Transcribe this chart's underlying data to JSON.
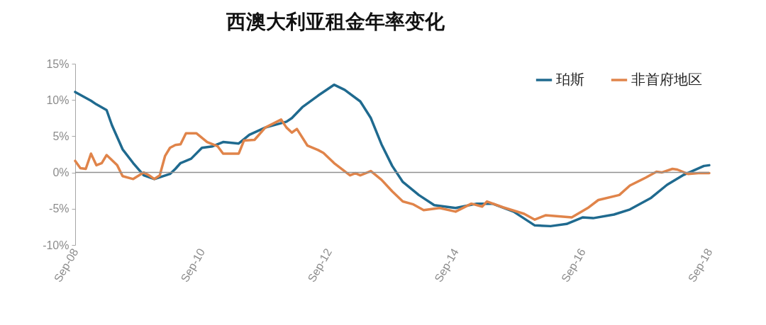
{
  "chart_data": {
    "type": "line",
    "title": "西澳大利亚租金年率变化",
    "xlim": [
      "2008-09",
      "2018-09"
    ],
    "xticks": [
      {
        "value": "2008-09",
        "label": "Sep-08"
      },
      {
        "value": "2010-09",
        "label": "Sep-10"
      },
      {
        "value": "2012-09",
        "label": "Sep-12"
      },
      {
        "value": "2014-09",
        "label": "Sep-14"
      },
      {
        "value": "2016-09",
        "label": "Sep-16"
      },
      {
        "value": "2018-09",
        "label": "Sep-18"
      }
    ],
    "ylim": [
      -10,
      15
    ],
    "yticks": [
      {
        "value": -10,
        "label": "-10%"
      },
      {
        "value": -5,
        "label": "-5%"
      },
      {
        "value": 0,
        "label": "0%"
      },
      {
        "value": 5,
        "label": "5%"
      },
      {
        "value": 10,
        "label": "10%"
      },
      {
        "value": 15,
        "label": "15%"
      }
    ],
    "grid": false,
    "legend": "top right",
    "line_style": "solid",
    "ref_lines": [
      {
        "axis": "y",
        "value": 0,
        "label": null,
        "color": "#909090"
      }
    ],
    "series": [
      {
        "name": "珀斯",
        "color": "#1f6a8f",
        "x": [
          "2008-09",
          "2008-12",
          "2009-01",
          "2009-03",
          "2009-04",
          "2009-06",
          "2009-08",
          "2009-10",
          "2009-12",
          "2010-03",
          "2010-04",
          "2010-05",
          "2010-07",
          "2010-09",
          "2010-11",
          "2011-01",
          "2011-04",
          "2011-06",
          "2011-09",
          "2012-01",
          "2012-02",
          "2012-04",
          "2012-07",
          "2012-10",
          "2012-12",
          "2013-03",
          "2013-05",
          "2013-07",
          "2013-09",
          "2013-11",
          "2014-01",
          "2014-02",
          "2014-05",
          "2014-09",
          "2015-01",
          "2015-04",
          "2015-08",
          "2015-12",
          "2016-03",
          "2016-06",
          "2016-09",
          "2016-11",
          "2017-03",
          "2017-06",
          "2017-10",
          "2018-01",
          "2018-04",
          "2018-08",
          "2018-09"
        ],
        "values": [
          11.1,
          9.9,
          9.4,
          8.6,
          6.5,
          3.2,
          1.3,
          -0.4,
          -0.9,
          -0.2,
          0.5,
          1.3,
          1.9,
          3.4,
          3.6,
          4.2,
          4.0,
          5.2,
          6.2,
          7.0,
          7.5,
          9.0,
          10.6,
          12.1,
          11.4,
          9.8,
          7.5,
          3.9,
          0.9,
          -1.3,
          -2.5,
          -3.1,
          -4.5,
          -4.9,
          -4.3,
          -4.3,
          -5.4,
          -7.3,
          -7.4,
          -7.1,
          -6.2,
          -6.3,
          -5.8,
          -5.1,
          -3.5,
          -1.7,
          -0.4,
          0.9,
          1.0
        ]
      },
      {
        "name": "非首府地区",
        "color": "#e0844a",
        "x": [
          "2008-09",
          "2008-10",
          "2008-11",
          "2008-12",
          "2009-01",
          "2009-02",
          "2009-03",
          "2009-05",
          "2009-06",
          "2009-08",
          "2009-10",
          "2009-11",
          "2009-12",
          "2010-01",
          "2010-02",
          "2010-03",
          "2010-04",
          "2010-05",
          "2010-06",
          "2010-08",
          "2010-10",
          "2010-12",
          "2011-01",
          "2011-04",
          "2011-05",
          "2011-07",
          "2011-09",
          "2011-12",
          "2012-01",
          "2012-02",
          "2012-03",
          "2012-05",
          "2012-07",
          "2012-08",
          "2012-10",
          "2013-01",
          "2013-02",
          "2013-03",
          "2013-05",
          "2013-07",
          "2013-09",
          "2013-11",
          "2014-01",
          "2014-03",
          "2014-06",
          "2014-09",
          "2014-12",
          "2015-02",
          "2015-03",
          "2015-06",
          "2015-10",
          "2015-12",
          "2016-02",
          "2016-07",
          "2016-10",
          "2016-12",
          "2017-04",
          "2017-06",
          "2017-09",
          "2017-11",
          "2017-12",
          "2018-02",
          "2018-03",
          "2018-05",
          "2018-07",
          "2018-09"
        ],
        "values": [
          1.6,
          0.6,
          0.5,
          2.6,
          1.0,
          1.3,
          2.4,
          1.0,
          -0.5,
          -0.9,
          0.0,
          -0.4,
          -0.9,
          -0.4,
          2.3,
          3.4,
          3.8,
          3.9,
          5.4,
          5.4,
          4.2,
          3.6,
          2.6,
          2.6,
          4.4,
          4.5,
          6.2,
          7.3,
          6.2,
          5.5,
          6.0,
          3.7,
          3.1,
          2.7,
          1.3,
          -0.4,
          -0.1,
          -0.4,
          0.2,
          -1.0,
          -2.6,
          -4.0,
          -4.4,
          -5.2,
          -4.9,
          -5.4,
          -4.3,
          -4.7,
          -4.0,
          -4.8,
          -5.7,
          -6.5,
          -5.9,
          -6.2,
          -4.9,
          -3.8,
          -3.1,
          -1.8,
          -0.7,
          0.1,
          0.0,
          0.5,
          0.4,
          -0.2,
          -0.1,
          -0.1
        ]
      }
    ]
  }
}
